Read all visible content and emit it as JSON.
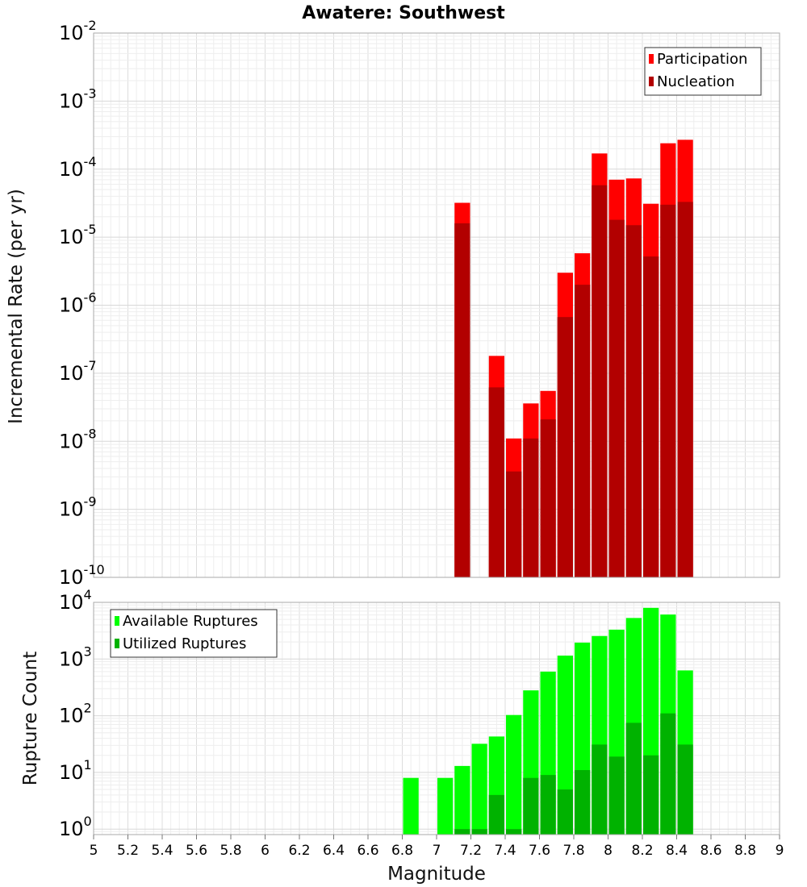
{
  "title": "Awatere: Southwest",
  "chart_data": [
    {
      "type": "bar",
      "ylabel": "Incremental Rate (per yr)",
      "xlabel": "",
      "yscale": "log",
      "ylim": [
        1e-10,
        0.01
      ],
      "xlim": [
        5,
        9
      ],
      "grid": true,
      "legend_position": "top-right",
      "x": [
        7.15,
        7.35,
        7.45,
        7.55,
        7.65,
        7.75,
        7.85,
        7.95,
        8.05,
        8.15,
        8.25,
        8.35,
        8.45
      ],
      "series": [
        {
          "name": "Participation",
          "color": "#ff0000",
          "values": [
            3.2e-05,
            1.8e-07,
            1.1e-08,
            3.6e-08,
            5.5e-08,
            3e-06,
            5.8e-06,
            0.00017,
            7e-05,
            7.3e-05,
            3.1e-05,
            0.00024,
            0.00027
          ]
        },
        {
          "name": "Nucleation",
          "color": "#b20000",
          "values": [
            1.6e-05,
            6.2e-08,
            3.6e-09,
            1.1e-08,
            2.1e-08,
            6.7e-07,
            2e-06,
            5.8e-05,
            1.8e-05,
            1.5e-05,
            5.2e-06,
            3e-05,
            3.3e-05
          ]
        }
      ]
    },
    {
      "type": "bar",
      "ylabel": "Rupture Count",
      "xlabel": "Magnitude",
      "yscale": "log",
      "ylim": [
        0.8,
        10000
      ],
      "xlim": [
        5,
        9
      ],
      "grid": true,
      "legend_position": "top-left",
      "x_ticks": [
        "5",
        "5.2",
        "5.4",
        "5.6",
        "5.8",
        "6",
        "6.2",
        "6.4",
        "6.6",
        "6.8",
        "7",
        "7.2",
        "7.4",
        "7.6",
        "7.8",
        "8",
        "8.2",
        "8.4",
        "8.6",
        "8.8",
        "9"
      ],
      "x": [
        6.85,
        7.05,
        7.15,
        7.25,
        7.35,
        7.45,
        7.55,
        7.65,
        7.75,
        7.85,
        7.95,
        8.05,
        8.15,
        8.25,
        8.35,
        8.45
      ],
      "series": [
        {
          "name": "Available Ruptures",
          "color": "#00ff00",
          "values": [
            8,
            8,
            13,
            32,
            43,
            103,
            280,
            600,
            1150,
            1950,
            2550,
            3300,
            5300,
            8000,
            6100,
            630
          ]
        },
        {
          "name": "Utilized Ruptures",
          "color": "#00b200",
          "values": [
            0,
            0,
            1,
            1,
            4,
            1,
            8,
            9,
            5,
            11,
            31,
            19,
            75,
            20,
            110,
            31
          ]
        }
      ]
    }
  ]
}
